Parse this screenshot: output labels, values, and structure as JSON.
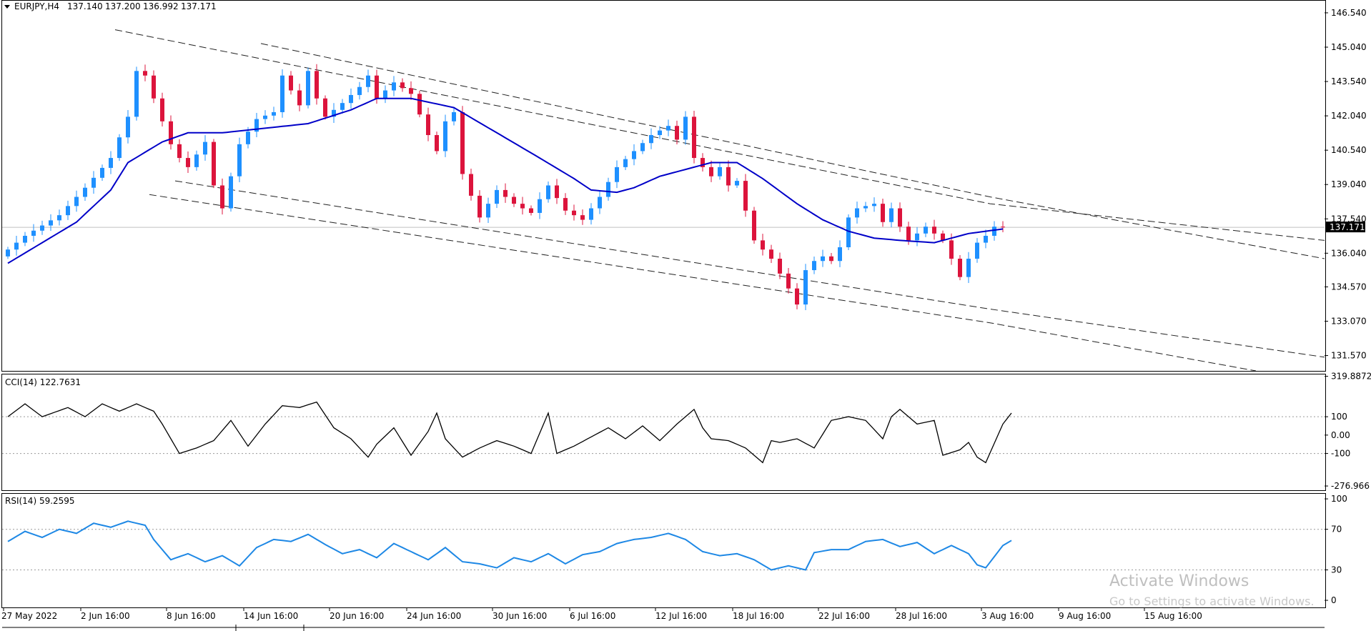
{
  "chart_data": [
    {
      "type": "candlestick",
      "title": "EURJPY,H4",
      "ohlc": [
        "137.140",
        "137.200",
        "136.992",
        "137.171"
      ],
      "price_axis": [
        "146.540",
        "145.040",
        "143.540",
        "142.040",
        "140.540",
        "139.040",
        "137.540",
        "136.040",
        "134.570",
        "133.070",
        "131.570"
      ],
      "last_price": "137.171",
      "ylim": [
        130.9,
        147.1
      ],
      "x_axis": [
        "27 May 2022",
        "2 Jun 16:00",
        "8 Jun 16:00",
        "14 Jun 16:00",
        "20 Jun 16:00",
        "24 Jun 16:00",
        "30 Jun 16:00",
        "6 Jul 16:00",
        "12 Jul 16:00",
        "18 Jul 16:00",
        "22 Jul 16:00",
        "28 Jul 16:00",
        "3 Aug 16:00",
        "9 Aug 16:00",
        "15 Aug 16:00"
      ],
      "price_path": [
        [
          0,
          135.9
        ],
        [
          3,
          136.8
        ],
        [
          7,
          137.7
        ],
        [
          10,
          138.9
        ],
        [
          13,
          140.2
        ],
        [
          15,
          142.0
        ],
        [
          16,
          144.0
        ],
        [
          17,
          143.8
        ],
        [
          18,
          142.8
        ],
        [
          20,
          140.8
        ],
        [
          21,
          140.2
        ],
        [
          22,
          139.8
        ],
        [
          24,
          140.9
        ],
        [
          25,
          139.0
        ],
        [
          26,
          138.0
        ],
        [
          28,
          140.8
        ],
        [
          30,
          141.9
        ],
        [
          32,
          142.2
        ],
        [
          33,
          143.8
        ],
        [
          35,
          142.5
        ],
        [
          36,
          144.0
        ],
        [
          37,
          142.8
        ],
        [
          38,
          142.0
        ],
        [
          40,
          142.6
        ],
        [
          42,
          143.3
        ],
        [
          43,
          143.8
        ],
        [
          44,
          142.8
        ],
        [
          46,
          143.5
        ],
        [
          48,
          143.0
        ],
        [
          50,
          141.2
        ],
        [
          51,
          140.5
        ],
        [
          52,
          141.8
        ],
        [
          53,
          142.2
        ],
        [
          54,
          139.5
        ],
        [
          56,
          137.6
        ],
        [
          58,
          138.8
        ],
        [
          60,
          138.2
        ],
        [
          62,
          137.8
        ],
        [
          64,
          139.0
        ],
        [
          66,
          137.9
        ],
        [
          68,
          137.5
        ],
        [
          70,
          138.5
        ],
        [
          72,
          139.8
        ],
        [
          74,
          140.5
        ],
        [
          76,
          141.2
        ],
        [
          78,
          141.6
        ],
        [
          79,
          141.0
        ],
        [
          80,
          142.0
        ],
        [
          81,
          140.2
        ],
        [
          83,
          139.4
        ],
        [
          84,
          139.8
        ],
        [
          85,
          139.0
        ],
        [
          86,
          139.2
        ],
        [
          88,
          136.6
        ],
        [
          90,
          135.8
        ],
        [
          92,
          134.5
        ],
        [
          93,
          133.8
        ],
        [
          94,
          135.3
        ],
        [
          95,
          135.7
        ],
        [
          96,
          135.9
        ],
        [
          97,
          135.7
        ],
        [
          98,
          136.3
        ],
        [
          99,
          137.6
        ],
        [
          100,
          138.0
        ],
        [
          102,
          138.2
        ],
        [
          103,
          137.4
        ],
        [
          104,
          138.0
        ],
        [
          105,
          137.2
        ],
        [
          106,
          136.6
        ],
        [
          108,
          137.2
        ],
        [
          110,
          136.6
        ],
        [
          112,
          135.0
        ],
        [
          113,
          135.8
        ],
        [
          114,
          136.5
        ],
        [
          115,
          136.8
        ],
        [
          116,
          137.2
        ]
      ],
      "series": [
        {
          "name": "",
          "type": "line",
          "values": [
            [
              0,
              135.6
            ],
            [
              8,
              137.4
            ],
            [
              12,
              138.8
            ],
            [
              14,
              140.0
            ],
            [
              18,
              140.9
            ],
            [
              21,
              141.3
            ],
            [
              25,
              141.3
            ],
            [
              30,
              141.5
            ],
            [
              35,
              141.7
            ],
            [
              40,
              142.3
            ],
            [
              43,
              142.8
            ],
            [
              47,
              142.8
            ],
            [
              52,
              142.4
            ],
            [
              57,
              141.3
            ],
            [
              62,
              140.2
            ],
            [
              66,
              139.3
            ],
            [
              68,
              138.8
            ],
            [
              71,
              138.7
            ],
            [
              73,
              138.9
            ],
            [
              76,
              139.4
            ],
            [
              79,
              139.7
            ],
            [
              82,
              140.0
            ],
            [
              85,
              140.0
            ],
            [
              88,
              139.3
            ],
            [
              92,
              138.2
            ],
            [
              95,
              137.5
            ],
            [
              98,
              137.0
            ],
            [
              101,
              136.7
            ],
            [
              104,
              136.6
            ],
            [
              108,
              136.5
            ],
            [
              110,
              136.7
            ],
            [
              112,
              136.9
            ],
            [
              114,
              137.0
            ],
            [
              116,
              137.1
            ]
          ]
        },
        {
          "name": "",
          "type": "trendline",
          "values": [
            [
              13,
              145.8
            ],
            [
              115,
              138.2
            ],
            [
              154,
              136.6
            ]
          ]
        },
        {
          "name": "",
          "type": "trendline",
          "values": [
            [
              30,
              145.2
            ],
            [
              115,
              138.5
            ],
            [
              154,
              135.8
            ]
          ]
        },
        {
          "name": "",
          "type": "trendline",
          "values": [
            [
              20,
              139.2
            ],
            [
              115,
              133.6
            ],
            [
              154,
              131.5
            ]
          ]
        },
        {
          "name": "",
          "type": "trendline",
          "values": [
            [
              17,
              138.6
            ],
            [
              115,
              133.0
            ],
            [
              146,
              130.9
            ]
          ]
        }
      ]
    },
    {
      "type": "line",
      "title": "CCI(14) 122.7631",
      "axis_labels": [
        "319.8872",
        "100",
        "0.00",
        "-100",
        "-276.966"
      ],
      "ylim": [
        -300,
        330
      ],
      "values": [
        [
          0,
          100
        ],
        [
          2,
          170
        ],
        [
          4,
          100
        ],
        [
          7,
          150
        ],
        [
          9,
          100
        ],
        [
          11,
          170
        ],
        [
          13,
          130
        ],
        [
          15,
          170
        ],
        [
          17,
          130
        ],
        [
          18,
          60
        ],
        [
          20,
          -100
        ],
        [
          22,
          -70
        ],
        [
          24,
          -30
        ],
        [
          26,
          80
        ],
        [
          28,
          -60
        ],
        [
          30,
          60
        ],
        [
          32,
          160
        ],
        [
          34,
          150
        ],
        [
          36,
          180
        ],
        [
          38,
          40
        ],
        [
          40,
          -20
        ],
        [
          42,
          -120
        ],
        [
          43,
          -50
        ],
        [
          45,
          40
        ],
        [
          47,
          -110
        ],
        [
          49,
          20
        ],
        [
          50,
          120
        ],
        [
          51,
          -20
        ],
        [
          53,
          -120
        ],
        [
          55,
          -70
        ],
        [
          57,
          -30
        ],
        [
          59,
          -60
        ],
        [
          61,
          -100
        ],
        [
          63,
          120
        ],
        [
          64,
          -100
        ],
        [
          66,
          -60
        ],
        [
          68,
          -10
        ],
        [
          70,
          40
        ],
        [
          72,
          -20
        ],
        [
          74,
          50
        ],
        [
          76,
          -30
        ],
        [
          78,
          60
        ],
        [
          80,
          140
        ],
        [
          81,
          40
        ],
        [
          82,
          -20
        ],
        [
          84,
          -30
        ],
        [
          86,
          -70
        ],
        [
          87,
          -110
        ],
        [
          88,
          -150
        ],
        [
          89,
          -30
        ],
        [
          90,
          -40
        ],
        [
          92,
          -20
        ],
        [
          94,
          -70
        ],
        [
          96,
          80
        ],
        [
          98,
          100
        ],
        [
          100,
          80
        ],
        [
          102,
          -20
        ],
        [
          103,
          100
        ],
        [
          104,
          140
        ],
        [
          106,
          60
        ],
        [
          108,
          80
        ],
        [
          109,
          -110
        ],
        [
          111,
          -80
        ],
        [
          112,
          -40
        ],
        [
          113,
          -120
        ],
        [
          114,
          -150
        ],
        [
          116,
          60
        ],
        [
          117,
          120
        ]
      ]
    },
    {
      "type": "line",
      "title": "RSI(14) 59.2595",
      "axis_labels": [
        "100",
        "70",
        "30",
        "0"
      ],
      "ylim": [
        -7,
        105
      ],
      "values": [
        [
          0,
          58
        ],
        [
          2,
          68
        ],
        [
          4,
          62
        ],
        [
          6,
          70
        ],
        [
          8,
          66
        ],
        [
          10,
          76
        ],
        [
          12,
          72
        ],
        [
          14,
          78
        ],
        [
          16,
          74
        ],
        [
          17,
          60
        ],
        [
          19,
          40
        ],
        [
          21,
          46
        ],
        [
          23,
          38
        ],
        [
          25,
          44
        ],
        [
          27,
          34
        ],
        [
          29,
          52
        ],
        [
          31,
          60
        ],
        [
          33,
          58
        ],
        [
          35,
          65
        ],
        [
          37,
          55
        ],
        [
          39,
          46
        ],
        [
          41,
          50
        ],
        [
          43,
          42
        ],
        [
          45,
          56
        ],
        [
          47,
          48
        ],
        [
          49,
          40
        ],
        [
          51,
          52
        ],
        [
          53,
          38
        ],
        [
          55,
          36
        ],
        [
          57,
          32
        ],
        [
          59,
          42
        ],
        [
          61,
          38
        ],
        [
          63,
          46
        ],
        [
          65,
          36
        ],
        [
          67,
          45
        ],
        [
          69,
          48
        ],
        [
          71,
          56
        ],
        [
          73,
          60
        ],
        [
          75,
          62
        ],
        [
          77,
          66
        ],
        [
          79,
          60
        ],
        [
          81,
          48
        ],
        [
          83,
          44
        ],
        [
          85,
          46
        ],
        [
          87,
          40
        ],
        [
          89,
          30
        ],
        [
          91,
          34
        ],
        [
          93,
          30
        ],
        [
          94,
          47
        ],
        [
          96,
          50
        ],
        [
          98,
          50
        ],
        [
          100,
          58
        ],
        [
          102,
          60
        ],
        [
          104,
          53
        ],
        [
          106,
          57
        ],
        [
          108,
          46
        ],
        [
          110,
          54
        ],
        [
          112,
          46
        ],
        [
          113,
          35
        ],
        [
          114,
          32
        ],
        [
          116,
          54
        ],
        [
          117,
          59
        ]
      ]
    }
  ],
  "watermark": {
    "line1": "Activate Windows",
    "line2": "Go to Settings to activate Windows."
  },
  "colors": {
    "bull": "#1e90ff",
    "bear": "#dc143c",
    "ma": "#0000c8",
    "cci": "#000000",
    "rsi": "#1e88e5",
    "grid": "#9a9a9a",
    "label_bg": "#000000",
    "label_fg": "#ffffff"
  }
}
